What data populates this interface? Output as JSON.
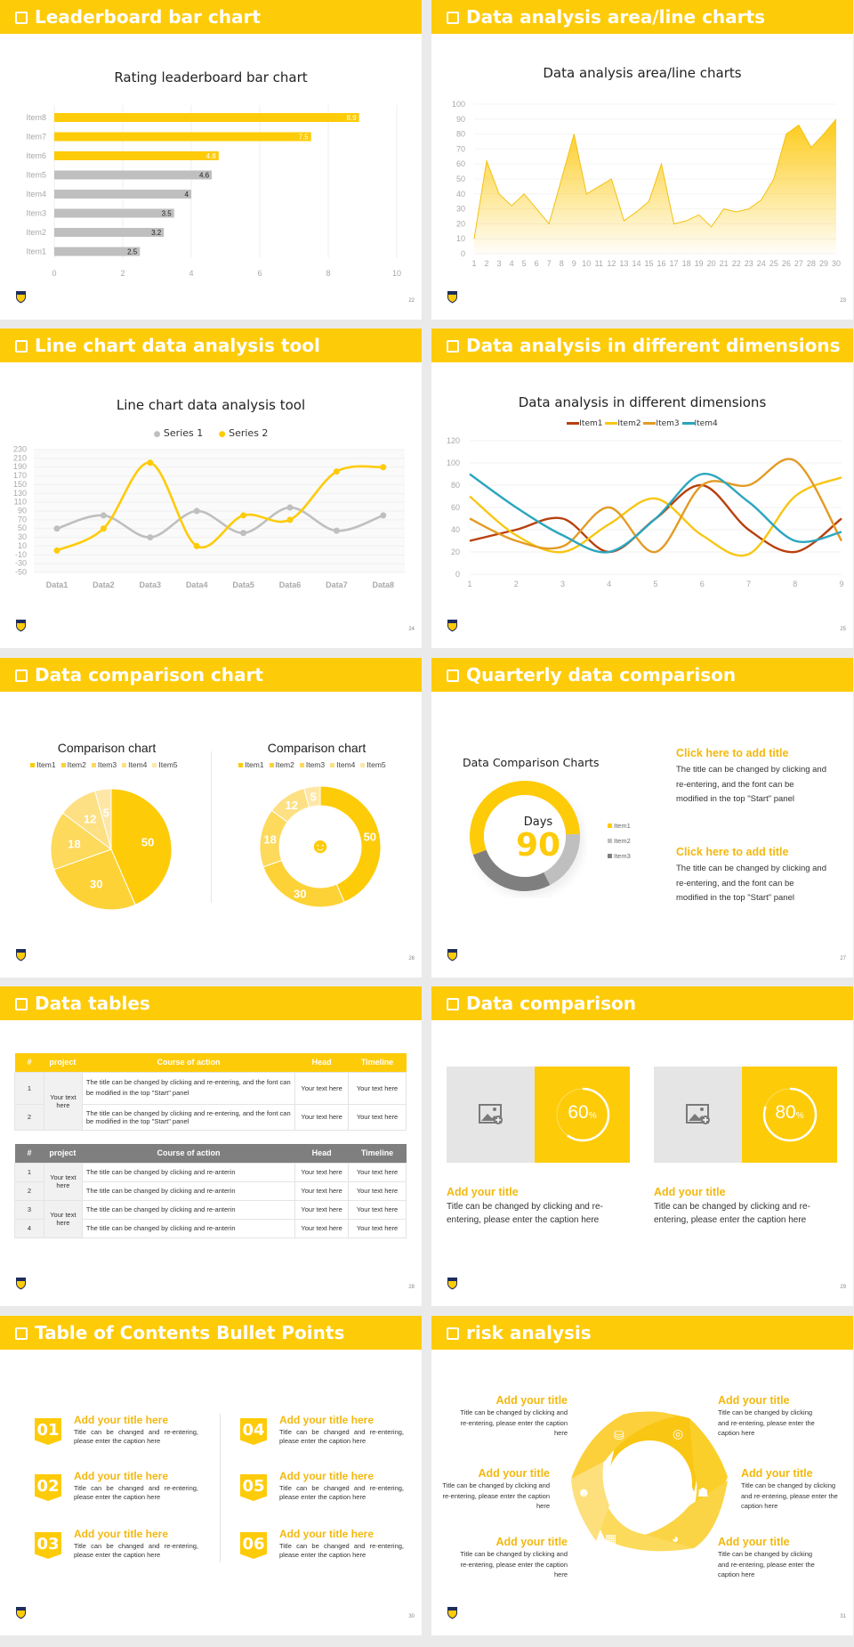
{
  "colors": {
    "accent": "#fecb09",
    "gray": "#bfbfbf",
    "dark_gray": "#7f7f7f",
    "item1": "#b8400e",
    "item2": "#f7c614",
    "item3": "#e39b24",
    "item4": "#2aa6be"
  },
  "slides": [
    {
      "title": "Leaderboard bar chart",
      "page": "22"
    },
    {
      "title": "Data analysis area/line charts",
      "page": "23"
    },
    {
      "title": "Line chart data analysis tool",
      "page": "24"
    },
    {
      "title": "Data analysis in different dimensions",
      "page": "25"
    },
    {
      "title": "Data comparison chart",
      "page": "26"
    },
    {
      "title": "Quarterly data comparison",
      "page": "27"
    },
    {
      "title": "Data tables",
      "page": "28"
    },
    {
      "title": "Data comparison",
      "page": "29"
    },
    {
      "title": "Table of Contents Bullet Points",
      "page": "30"
    },
    {
      "title": "risk analysis",
      "page": "31"
    }
  ],
  "chart_data": [
    {
      "type": "bar",
      "orientation": "horizontal",
      "title": "Rating leaderboard bar chart",
      "categories": [
        "Item1",
        "Item2",
        "Item3",
        "Item4",
        "Item5",
        "Item6",
        "Item7",
        "Item8"
      ],
      "values": [
        2.5,
        3.2,
        3.5,
        4,
        4.6,
        4.8,
        7.5,
        8.9
      ],
      "highlight_top": 3,
      "xlim": [
        0,
        10
      ],
      "xticks": [
        0,
        2,
        4,
        6,
        8,
        10
      ],
      "grid": true
    },
    {
      "type": "area",
      "title": "Data analysis area/line charts",
      "x": [
        1,
        2,
        3,
        4,
        5,
        6,
        7,
        8,
        9,
        10,
        11,
        12,
        13,
        14,
        15,
        16,
        17,
        18,
        19,
        20,
        21,
        22,
        23,
        24,
        25,
        26,
        27,
        28,
        29,
        30
      ],
      "values": [
        10,
        62,
        40,
        32,
        40,
        30,
        20,
        50,
        80,
        40,
        45,
        50,
        22,
        28,
        35,
        60,
        20,
        22,
        26,
        18,
        30,
        28,
        30,
        36,
        50,
        80,
        86,
        71,
        80,
        90
      ],
      "ylim": [
        0,
        100
      ],
      "yticks": [
        0,
        10,
        20,
        30,
        40,
        50,
        60,
        70,
        80,
        90,
        100
      ],
      "grid": true
    },
    {
      "type": "line",
      "smooth": true,
      "title": "Line chart data analysis tool",
      "categories": [
        "Data1",
        "Data2",
        "Data3",
        "Data4",
        "Data5",
        "Data6",
        "Data7",
        "Data8"
      ],
      "series": [
        {
          "name": "Series 1",
          "values": [
            50,
            80,
            30,
            90,
            40,
            98,
            45,
            80
          ]
        },
        {
          "name": "Series 2",
          "values": [
            0,
            50,
            200,
            10,
            80,
            70,
            180,
            190
          ]
        }
      ],
      "ylim": [
        -50,
        230
      ],
      "yticks": [
        -50,
        -30,
        -10,
        10,
        30,
        50,
        70,
        90,
        110,
        130,
        150,
        170,
        190,
        210,
        230
      ],
      "legend_position": "top"
    },
    {
      "type": "line",
      "smooth": true,
      "title": "Data analysis in different dimensions",
      "x": [
        1,
        2,
        3,
        4,
        5,
        6,
        7,
        8,
        9
      ],
      "series": [
        {
          "name": "Item1",
          "values": [
            30,
            40,
            50,
            20,
            50,
            80,
            40,
            20,
            50
          ]
        },
        {
          "name": "Item2",
          "values": [
            70,
            35,
            20,
            45,
            68,
            35,
            18,
            70,
            87
          ]
        },
        {
          "name": "Item3",
          "values": [
            50,
            30,
            25,
            60,
            20,
            80,
            80,
            102,
            30
          ]
        },
        {
          "name": "Item4",
          "values": [
            90,
            60,
            35,
            20,
            50,
            90,
            65,
            30,
            38
          ]
        }
      ],
      "ylim": [
        0,
        120
      ],
      "yticks": [
        0,
        20,
        40,
        60,
        80,
        100,
        120
      ],
      "legend_position": "top"
    },
    {
      "type": "pie",
      "title": "Comparison chart",
      "categories": [
        "Item1",
        "Item2",
        "Item3",
        "Item4",
        "Item5"
      ],
      "values": [
        50,
        30,
        18,
        12,
        5
      ]
    },
    {
      "type": "pie",
      "variant": "donut",
      "title": "Comparison chart",
      "categories": [
        "Item1",
        "Item2",
        "Item3",
        "Item4",
        "Item5"
      ],
      "values": [
        50,
        30,
        18,
        12,
        5
      ]
    },
    {
      "type": "pie",
      "variant": "donut",
      "title": "Data Comparison Charts",
      "categories": [
        "Item1",
        "Item2",
        "Item3"
      ],
      "values": [
        55,
        18,
        27
      ],
      "center_label": "Days",
      "center_value": "90"
    },
    {
      "type": "pie",
      "variant": "progress-ring",
      "values": [
        60
      ],
      "label": "60%"
    },
    {
      "type": "pie",
      "variant": "progress-ring",
      "values": [
        80
      ],
      "label": "80%"
    }
  ],
  "quarterly": {
    "blocks": [
      {
        "title": "Click here to add title",
        "body": "The title can be changed by clicking and re-entering, and the font can be modified in the top \"Start\" panel"
      },
      {
        "title": "Click here to add title",
        "body": "The title can be changed by clicking and re-entering, and the font can be modified in the top \"Start\" panel"
      }
    ]
  },
  "tables": [
    {
      "headers": [
        "#",
        "project",
        "Course of action",
        "Head",
        "Timeline"
      ],
      "project_cells": [
        "Your text here"
      ],
      "rows": [
        {
          "n": "1",
          "action": "The title can be changed by clicking and re-entering, and the font can be modified in the top \"Start\" panel",
          "head": "Your text here",
          "timeline": "Your text here"
        },
        {
          "n": "2",
          "action": "The title can be changed by clicking and re-entering, and the font can be modified in the top \"Start\" panel",
          "head": "Your text here",
          "timeline": "Your text here"
        }
      ]
    },
    {
      "headers": [
        "#",
        "project",
        "Course of action",
        "Head",
        "Timeline"
      ],
      "project_cells": [
        "Your text here",
        "Your text here"
      ],
      "rows": [
        {
          "n": "1",
          "action": "The title can be changed by clicking and re-anterin",
          "head": "Your text here",
          "timeline": "Your text here"
        },
        {
          "n": "2",
          "action": "The title can be changed by clicking and re-anterin",
          "head": "Your text here",
          "timeline": "Your text here"
        },
        {
          "n": "3",
          "action": "The title can be changed by clicking and re-anterin",
          "head": "Your text here",
          "timeline": "Your text here"
        },
        {
          "n": "4",
          "action": "The title can be changed by clicking and re-anterin",
          "head": "Your text here",
          "timeline": "Your text here"
        }
      ]
    }
  ],
  "comparison": {
    "cards": [
      {
        "percent": "60",
        "unit": "%",
        "title": "Add your title",
        "body": "Title can be changed by clicking and re-entering, please enter the caption here"
      },
      {
        "percent": "80",
        "unit": "%",
        "title": "Add your title",
        "body": "Title can be changed by clicking and re-entering, please enter the caption here"
      }
    ]
  },
  "toc": {
    "items": [
      {
        "num": "01",
        "title": "Add your title here",
        "body": "Title can be changed and re-entering, please enter the caption here"
      },
      {
        "num": "02",
        "title": "Add your title here",
        "body": "Title can be changed and re-entering, please enter the caption here"
      },
      {
        "num": "03",
        "title": "Add your title here",
        "body": "Title can be changed and re-entering, please enter the caption here"
      },
      {
        "num": "04",
        "title": "Add your title here",
        "body": "Title can be changed and re-entering, please enter the caption here"
      },
      {
        "num": "05",
        "title": "Add your title here",
        "body": "Title can be changed and re-entering, please enter the caption here"
      },
      {
        "num": "06",
        "title": "Add your title here",
        "body": "Title can be changed and re-entering, please enter the caption here"
      }
    ]
  },
  "risk": {
    "items": [
      {
        "title": "Add your title",
        "body": "Title can be changed by clicking and re-entering, please enter the caption here",
        "icon": "money-bag-icon"
      },
      {
        "title": "Add your title",
        "body": "Title can be changed by clicking and re-entering, please enter the caption here",
        "icon": "coins-icon"
      },
      {
        "title": "Add your title",
        "body": "Title can be changed by clicking and re-entering, please enter the caption here",
        "icon": "user-yen-icon"
      },
      {
        "title": "Add your title",
        "body": "Title can be changed by clicking and re-entering, please enter the caption here",
        "icon": "team-icon"
      },
      {
        "title": "Add your title",
        "body": "Title can be changed by clicking and re-entering, please enter the caption here",
        "icon": "building-icon"
      },
      {
        "title": "Add your title",
        "body": "Title can be changed by clicking and re-entering, please enter the caption here",
        "icon": "pie-chart-icon"
      }
    ]
  }
}
